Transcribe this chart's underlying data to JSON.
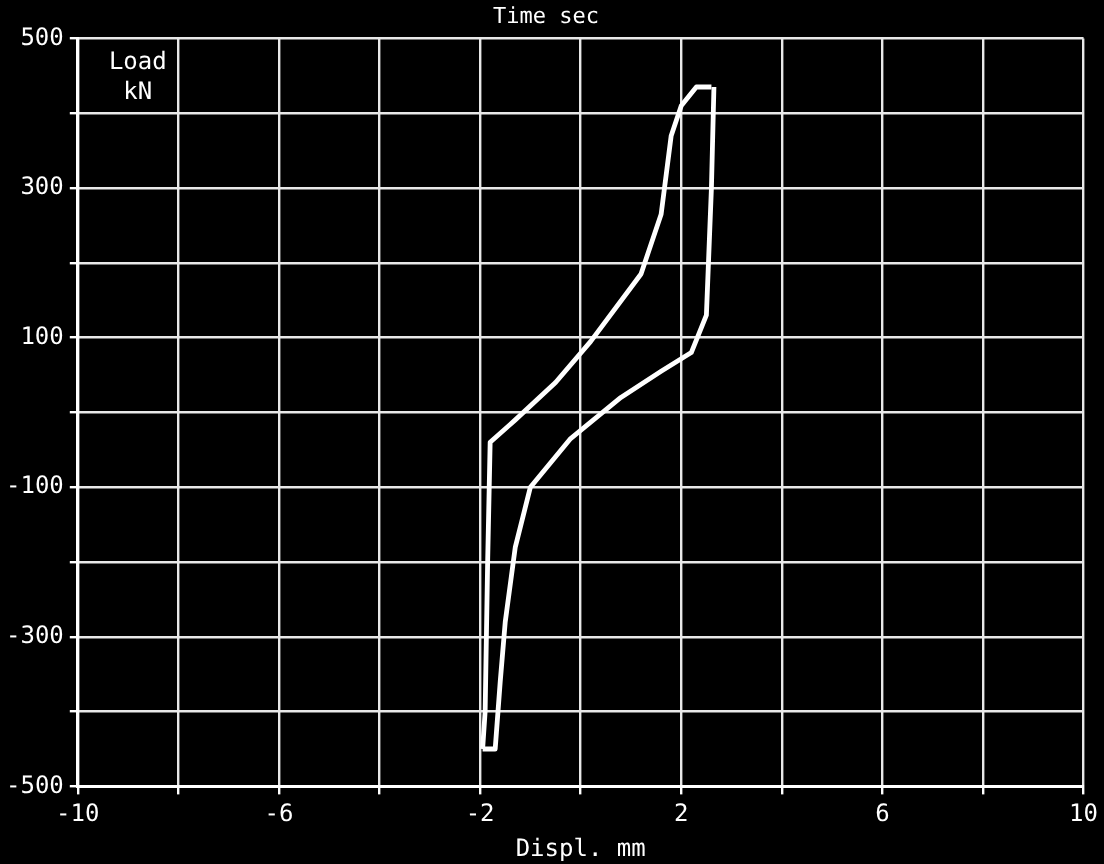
{
  "chart_data": {
    "type": "line",
    "title": "Time sec",
    "xlabel": "Displ. mm",
    "ylabel": "Load kN",
    "xlim": [
      -10,
      10
    ],
    "ylim": [
      -500,
      500
    ],
    "xticks": [
      -10,
      {
        "value": -8,
        "label": null
      },
      -6,
      {
        "value": -4,
        "label": null
      },
      -2,
      {
        "value": 0,
        "label": null
      },
      2,
      {
        "value": 4,
        "label": null
      },
      6,
      {
        "value": 8,
        "label": null
      },
      10
    ],
    "yticks": [
      -500,
      {
        "value": -400,
        "label": null
      },
      -300,
      {
        "value": -200,
        "label": null
      },
      -100,
      {
        "value": 0,
        "label": null
      },
      100,
      {
        "value": 200,
        "label": null
      },
      300,
      {
        "value": 400,
        "label": null
      },
      500
    ],
    "grid": true,
    "legend": false,
    "marker": "none",
    "line_style": "solid",
    "series": [
      {
        "color": "#ffffff",
        "x": [
          -1.95,
          -1.9,
          -1.85,
          -1.8,
          -1.3,
          -0.5,
          0.2,
          1.2,
          1.6,
          1.8,
          2.0,
          2.3,
          2.6
        ],
        "values": [
          -450,
          -400,
          -200,
          -40,
          -10,
          40,
          95,
          185,
          265,
          370,
          410,
          435,
          435
        ]
      },
      {
        "color": "#ffffff",
        "x": [
          2.65,
          2.6,
          2.5,
          2.2,
          1.6,
          0.8,
          -0.2,
          -1.0,
          -1.3,
          -1.5,
          -1.6,
          -1.7,
          -1.95
        ],
        "values": [
          435,
          300,
          130,
          80,
          55,
          20,
          -35,
          -100,
          -180,
          -280,
          -360,
          -450,
          -450
        ]
      }
    ]
  }
}
